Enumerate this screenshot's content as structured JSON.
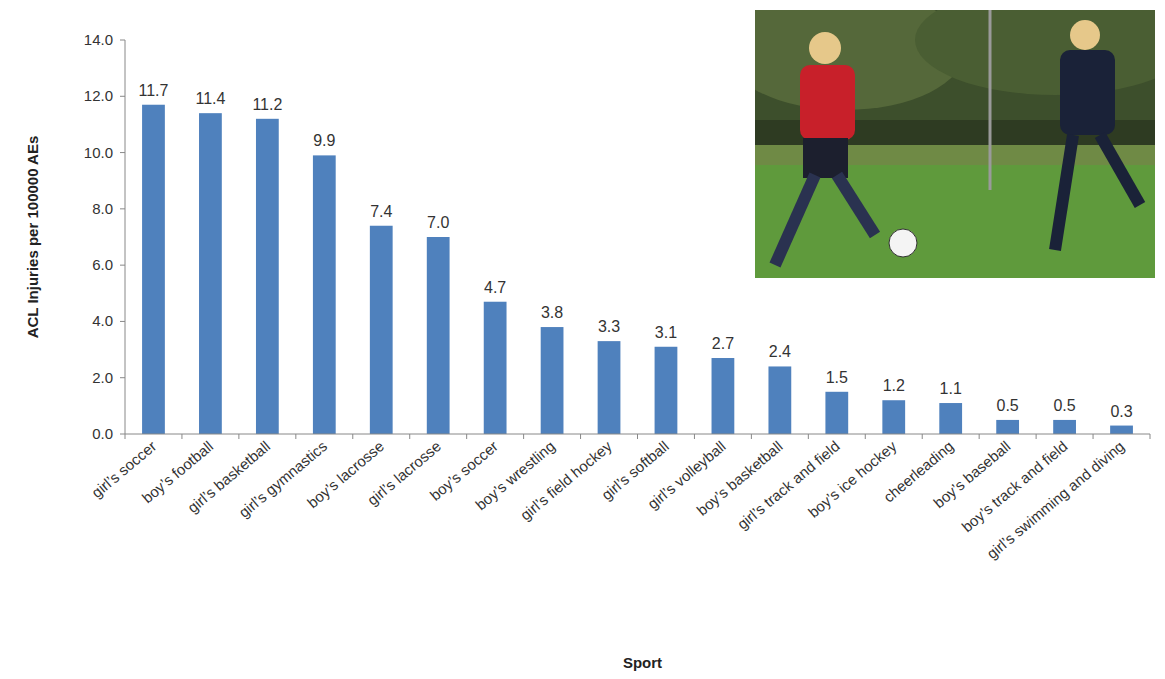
{
  "chart_data": {
    "type": "bar",
    "x_label": "Sport",
    "y_label": "ACL Injuries per 100000 AEs",
    "categories": [
      "girl’s soccer",
      "boy’s football",
      "girl’s basketball",
      "girl’s gymnastics",
      "boy’s lacrosse",
      "girl’s lacrosse",
      "boy’s soccer",
      "boy’s wrestling",
      "girl’s field hockey",
      "girl’s softball",
      "girl’s volleyball",
      "boy’s basketball",
      "girl’s track and field",
      "boy’s ice hockey",
      "cheerleading",
      "boy’s baseball",
      "boy’s track and field",
      "girl’s swimming and diving"
    ],
    "values": [
      11.7,
      11.4,
      11.2,
      9.9,
      7.4,
      7.0,
      4.7,
      3.8,
      3.3,
      3.1,
      2.7,
      2.4,
      1.5,
      1.2,
      1.1,
      0.5,
      0.5,
      0.3
    ],
    "value_labels": [
      "11.7",
      "11.4",
      "11.2",
      "9.9",
      "7.4",
      "7.0",
      "4.7",
      "3.8",
      "3.3",
      "3.1",
      "2.7",
      "2.4",
      "1.5",
      "1.2",
      "1.1",
      "0.5",
      "0.5",
      "0.3"
    ],
    "color": "#4f81bd",
    "ylim": [
      0,
      14
    ],
    "yticks": [
      {
        "value": 0,
        "label": "0.0"
      },
      {
        "value": 2,
        "label": "2.0"
      },
      {
        "value": 4,
        "label": "4.0"
      },
      {
        "value": 6,
        "label": "6.0"
      },
      {
        "value": 8,
        "label": "8.0"
      },
      {
        "value": 10,
        "label": "10.0"
      },
      {
        "value": 12,
        "label": "12.0"
      },
      {
        "value": 14,
        "label": "14.0"
      }
    ],
    "grid": false,
    "data_labels": true
  }
}
